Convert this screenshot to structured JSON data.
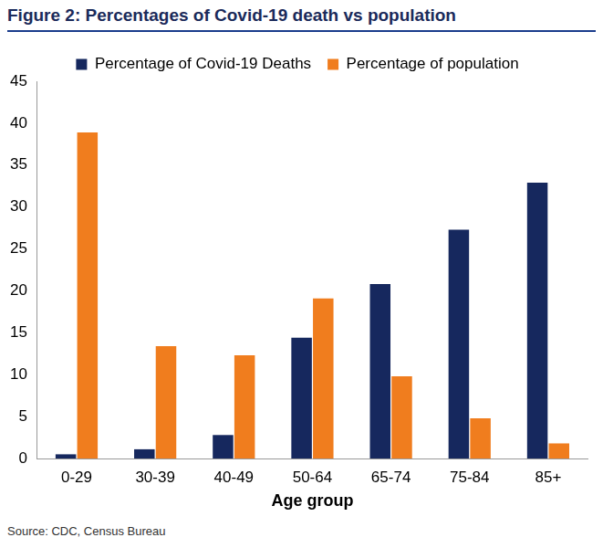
{
  "chart_data": {
    "type": "bar",
    "title": "Figure 2: Percentages of Covid-19 death vs population",
    "source": "Source: CDC, Census Bureau",
    "x_label": "Age group",
    "categories": [
      "0-29",
      "30-39",
      "40-49",
      "50-64",
      "65-74",
      "75-84",
      "85+"
    ],
    "series": [
      {
        "name": "Percentage of Covid-19 Deaths",
        "color": "#16285e",
        "values": [
          0.5,
          1.1,
          2.8,
          14.4,
          20.8,
          27.3,
          32.9
        ]
      },
      {
        "name": "Percentage of population",
        "color": "#f07d1e",
        "values": [
          38.9,
          13.4,
          12.3,
          19.1,
          9.8,
          4.8,
          1.8
        ]
      }
    ],
    "ylim": [
      0,
      45
    ],
    "yticks": [
      0,
      5,
      10,
      15,
      20,
      25,
      30,
      35,
      40,
      45
    ],
    "grid": false,
    "legend": "top"
  }
}
